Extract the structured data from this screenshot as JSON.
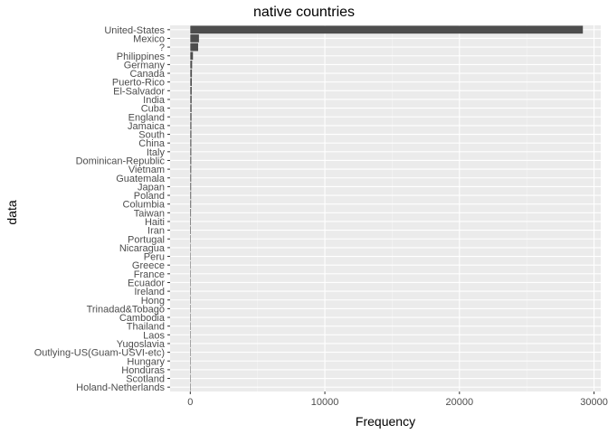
{
  "chart_data": {
    "type": "bar",
    "orientation": "horizontal",
    "title": "native countries",
    "xlabel": "Frequency",
    "ylabel": "data",
    "xlim": [
      -1500,
      30500
    ],
    "xticks": [
      0,
      10000,
      20000,
      30000
    ],
    "grid": true,
    "legend": "none",
    "colors": {
      "panel_background": "#ebebeb",
      "grid_major": "#ffffff",
      "grid_minor": "#f5f5f5",
      "bar": "#4d4d4d",
      "tick_text": "#4d4d4d"
    },
    "categories": [
      "United-States",
      "Mexico",
      "?",
      "Philippines",
      "Germany",
      "Canada",
      "Puerto-Rico",
      "El-Salvador",
      "India",
      "Cuba",
      "England",
      "Jamaica",
      "South",
      "China",
      "Italy",
      "Dominican-Republic",
      "Vietnam",
      "Guatemala",
      "Japan",
      "Poland",
      "Columbia",
      "Taiwan",
      "Haiti",
      "Iran",
      "Portugal",
      "Nicaragua",
      "Peru",
      "Greece",
      "France",
      "Ecuador",
      "Ireland",
      "Hong",
      "Trinadad&Tobago",
      "Cambodia",
      "Thailand",
      "Laos",
      "Yugoslavia",
      "Outlying-US(Guam-USVI-etc)",
      "Hungary",
      "Honduras",
      "Scotland",
      "Holand-Netherlands"
    ],
    "values": [
      29170,
      643,
      583,
      198,
      137,
      121,
      114,
      106,
      100,
      95,
      90,
      81,
      80,
      75,
      73,
      70,
      67,
      64,
      62,
      60,
      59,
      51,
      44,
      43,
      37,
      34,
      31,
      29,
      29,
      28,
      24,
      20,
      19,
      19,
      18,
      18,
      16,
      14,
      13,
      13,
      12,
      1
    ]
  }
}
